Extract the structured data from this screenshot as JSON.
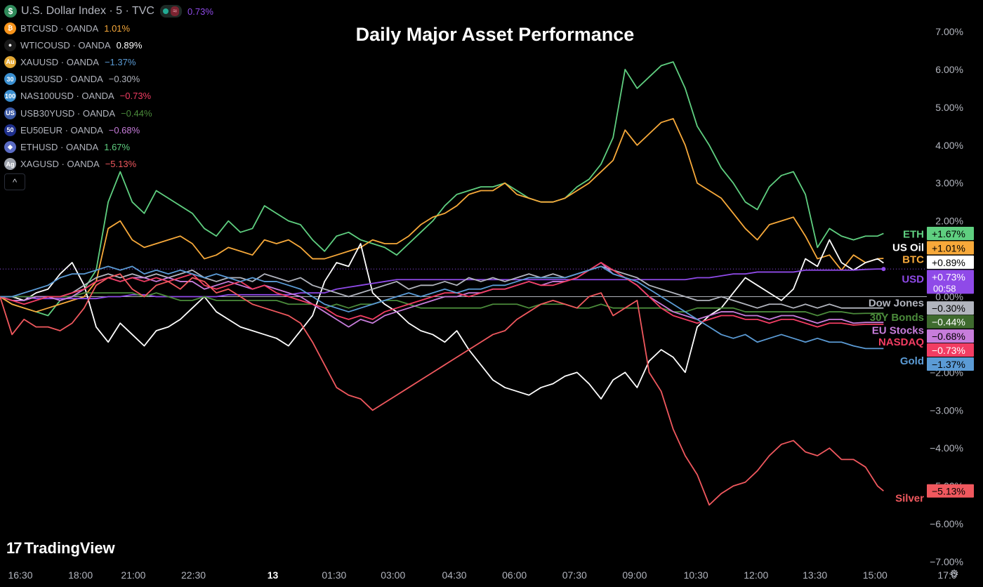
{
  "header": {
    "main_symbol": "U.S. Dollar Index · 5 · TVC",
    "main_value": "0.73%",
    "status_wave": "≈",
    "collapse_glyph": "^"
  },
  "chart_title": "Daily Major Asset Performance",
  "branding": {
    "logo_mark": "17",
    "logo_text": "TradingView",
    "settings_glyph": "⚙"
  },
  "legend_entries": [
    {
      "symbol": "BTCUSD · OANDA",
      "value": "1.01%",
      "color": "#f7a93a",
      "icon_color": "#f7931a",
      "icon_text": "₿"
    },
    {
      "symbol": "WTICOUSD · OANDA",
      "value": "0.89%",
      "color": "#ffffff",
      "icon_color": "#1a1a1a",
      "icon_text": "●"
    },
    {
      "symbol": "XAUUSD · OANDA",
      "value": "−1.37%",
      "color": "#5b9bd5",
      "icon_color": "#e3a835",
      "icon_text": "Au"
    },
    {
      "symbol": "US30USD · OANDA",
      "value": "−0.30%",
      "color": "#b2b5be",
      "icon_color": "#3a8fd0",
      "icon_text": "30"
    },
    {
      "symbol": "NAS100USD · OANDA",
      "value": "−0.73%",
      "color": "#f23d63",
      "icon_color": "#3a8fd0",
      "icon_text": "100"
    },
    {
      "symbol": "USB30YUSD · OANDA",
      "value": "−0.44%",
      "color": "#4b8b3b",
      "icon_color": "#3c5aa6",
      "icon_text": "US"
    },
    {
      "symbol": "EU50EUR · OANDA",
      "value": "−0.68%",
      "color": "#c77ddb",
      "icon_color": "#1e2f8c",
      "icon_text": "50"
    },
    {
      "symbol": "ETHUSD · OANDA",
      "value": "1.67%",
      "color": "#5fcf80",
      "icon_color": "#5a6bc4",
      "icon_text": "◆"
    },
    {
      "symbol": "XAGUSD · OANDA",
      "value": "−5.13%",
      "color": "#f0585e",
      "icon_color": "#9ea3ad",
      "icon_text": "Ag"
    }
  ],
  "chart_data": {
    "type": "line",
    "title": "Daily Major Asset Performance",
    "xlabel": "",
    "ylabel": "",
    "ylim": [
      -7.0,
      7.0
    ],
    "y_ticks": [
      7,
      6,
      5,
      4,
      3,
      2,
      1,
      0,
      -1,
      -2,
      -3,
      -4,
      -5,
      -6,
      -7
    ],
    "y_tick_labels": [
      "7.00%",
      "6.00%",
      "5.00%",
      "4.00%",
      "3.00%",
      "2.00%",
      "1.00%",
      "0.00%",
      "−1.00%",
      "−2.00%",
      "−3.00%",
      "−4.00%",
      "−5.00%",
      "−6.00%",
      "−7.00%"
    ],
    "x_tick_labels": [
      "16:30",
      "18:00",
      "21:00",
      "22:30",
      "13",
      "01:30",
      "03:00",
      "04:30",
      "06:00",
      "07:30",
      "09:00",
      "10:30",
      "12:00",
      "13:30",
      "15:00",
      "17:0"
    ],
    "x_tick_bold": [
      false,
      false,
      false,
      false,
      true,
      false,
      false,
      false,
      false,
      false,
      false,
      false,
      false,
      false,
      false,
      false
    ],
    "x_ticks": [
      0,
      5.0,
      9.4,
      14.4,
      21.0,
      26.1,
      31.0,
      36.1,
      41.1,
      46.1,
      51.1,
      56.2,
      61.2,
      66.1,
      71.1,
      77.1
    ],
    "xlim": [
      0,
      77.1
    ],
    "x_last": 73.5,
    "x": [
      0,
      1,
      2,
      3,
      4,
      5,
      6,
      7,
      8,
      9,
      10,
      11,
      12,
      13,
      14,
      15,
      16,
      17,
      18,
      19,
      20,
      21,
      22,
      23,
      24,
      25,
      26,
      27,
      28,
      29,
      30,
      31,
      32,
      33,
      34,
      35,
      36,
      37,
      38,
      39,
      40,
      41,
      42,
      43,
      44,
      45,
      46,
      47,
      48,
      49,
      50,
      51,
      52,
      53,
      54,
      55,
      56,
      57,
      58,
      59,
      60,
      61,
      62,
      63,
      64,
      65,
      66,
      67,
      68,
      69,
      70,
      71,
      72,
      73,
      73.5
    ],
    "series": [
      {
        "name": "ETHUSD",
        "label": "ETH",
        "color": "#5fcf80",
        "last_label": "+1.67%",
        "values": [
          0.0,
          -0.2,
          -0.3,
          -0.4,
          -0.5,
          -0.1,
          0.0,
          0.2,
          0.7,
          2.5,
          3.3,
          2.5,
          2.2,
          2.8,
          2.6,
          2.4,
          2.2,
          1.8,
          1.6,
          2.0,
          1.7,
          1.8,
          2.4,
          2.2,
          2.0,
          1.9,
          1.5,
          1.2,
          1.6,
          1.7,
          1.5,
          1.4,
          1.3,
          1.1,
          1.4,
          1.7,
          2.0,
          2.4,
          2.7,
          2.8,
          2.9,
          2.9,
          3.0,
          2.8,
          2.6,
          2.5,
          2.5,
          2.6,
          2.9,
          3.1,
          3.5,
          4.2,
          6.0,
          5.5,
          5.8,
          6.1,
          6.2,
          5.5,
          4.5,
          4.0,
          3.4,
          3.0,
          2.5,
          2.3,
          2.9,
          3.2,
          3.3,
          2.7,
          1.3,
          1.8,
          1.6,
          1.5,
          1.6,
          1.6,
          1.67
        ]
      },
      {
        "name": "BTCUSD",
        "label": "BTC",
        "color": "#f7a93a",
        "last_label": "+1.01%",
        "values": [
          0.0,
          -0.2,
          -0.3,
          -0.4,
          -0.3,
          -0.2,
          -0.1,
          0.0,
          0.4,
          1.8,
          2.0,
          1.5,
          1.3,
          1.4,
          1.5,
          1.6,
          1.4,
          1.0,
          1.1,
          1.3,
          1.2,
          1.1,
          1.5,
          1.4,
          1.5,
          1.3,
          1.0,
          1.0,
          1.1,
          1.2,
          1.3,
          1.5,
          1.4,
          1.4,
          1.6,
          1.9,
          2.1,
          2.2,
          2.4,
          2.7,
          2.8,
          2.8,
          3.0,
          2.7,
          2.6,
          2.5,
          2.5,
          2.6,
          2.8,
          3.0,
          3.3,
          3.6,
          4.4,
          4.0,
          4.3,
          4.6,
          4.7,
          4.0,
          3.0,
          2.8,
          2.6,
          2.2,
          1.8,
          1.5,
          1.9,
          2.0,
          2.1,
          1.6,
          1.0,
          1.1,
          0.7,
          1.1,
          0.9,
          1.0,
          1.01
        ]
      },
      {
        "name": "WTICOUSD",
        "label": "US Oil",
        "color": "#ffffff",
        "last_label": "+0.89%",
        "values": [
          0.0,
          0.0,
          -0.1,
          0.1,
          0.2,
          0.6,
          0.9,
          0.3,
          -0.8,
          -1.2,
          -0.7,
          -1.0,
          -1.3,
          -0.9,
          -0.8,
          -0.6,
          -0.3,
          0.0,
          -0.4,
          -0.6,
          -0.8,
          -0.9,
          -1.0,
          -1.1,
          -1.3,
          -0.9,
          -0.5,
          0.4,
          0.9,
          0.8,
          1.4,
          0.1,
          -0.2,
          -0.4,
          -0.7,
          -0.9,
          -1.0,
          -1.2,
          -0.9,
          -1.4,
          -1.8,
          -2.2,
          -2.4,
          -2.5,
          -2.6,
          -2.4,
          -2.3,
          -2.1,
          -2.0,
          -2.3,
          -2.7,
          -2.2,
          -2.0,
          -2.4,
          -1.7,
          -1.4,
          -1.6,
          -2.0,
          -0.8,
          -0.5,
          -0.3,
          0.1,
          0.5,
          0.3,
          0.1,
          -0.1,
          0.2,
          1.0,
          0.8,
          1.5,
          0.9,
          0.7,
          0.9,
          1.0,
          0.89
        ]
      },
      {
        "name": "DXY",
        "label": "USD",
        "color": "#8f4ae8",
        "last_label": "+0.73%",
        "values": [
          0.0,
          0.0,
          0.0,
          -0.05,
          -0.05,
          -0.05,
          -0.05,
          -0.05,
          -0.05,
          0.0,
          0.0,
          0.05,
          0.05,
          0.0,
          0.0,
          0.0,
          0.0,
          0.0,
          0.0,
          0.05,
          0.05,
          0.05,
          0.05,
          0.05,
          0.05,
          0.1,
          0.1,
          0.1,
          0.2,
          0.25,
          0.3,
          0.35,
          0.4,
          0.45,
          0.45,
          0.45,
          0.45,
          0.45,
          0.45,
          0.45,
          0.45,
          0.45,
          0.45,
          0.45,
          0.45,
          0.45,
          0.45,
          0.45,
          0.45,
          0.45,
          0.45,
          0.45,
          0.45,
          0.45,
          0.45,
          0.45,
          0.45,
          0.45,
          0.5,
          0.5,
          0.55,
          0.6,
          0.6,
          0.65,
          0.65,
          0.65,
          0.65,
          0.7,
          0.7,
          0.7,
          0.7,
          0.7,
          0.72,
          0.73,
          0.73
        ]
      },
      {
        "name": "US30USD",
        "label": "Dow Jones",
        "color": "#b2b5be",
        "last_label": "−0.30%",
        "values": [
          0.0,
          -0.1,
          -0.1,
          0.0,
          0.0,
          0.0,
          0.1,
          0.3,
          0.5,
          0.6,
          0.5,
          0.6,
          0.5,
          0.6,
          0.5,
          0.6,
          0.7,
          0.5,
          0.4,
          0.5,
          0.5,
          0.4,
          0.6,
          0.5,
          0.4,
          0.5,
          0.3,
          0.2,
          0.1,
          0.0,
          0.1,
          0.2,
          0.3,
          0.4,
          0.2,
          0.3,
          0.3,
          0.4,
          0.3,
          0.5,
          0.4,
          0.5,
          0.4,
          0.5,
          0.6,
          0.5,
          0.6,
          0.5,
          0.6,
          0.7,
          0.8,
          0.7,
          0.6,
          0.5,
          0.3,
          0.2,
          0.1,
          0.0,
          -0.1,
          -0.1,
          0.0,
          -0.1,
          -0.2,
          -0.3,
          -0.2,
          -0.2,
          -0.3,
          -0.2,
          -0.3,
          -0.2,
          -0.3,
          -0.3,
          -0.3,
          -0.3,
          -0.3
        ]
      },
      {
        "name": "USB30YUSD",
        "label": "30Y Bonds",
        "color": "#4b8b3b",
        "last_label": "−0.44%",
        "values": [
          0.0,
          0.0,
          0.0,
          0.0,
          0.0,
          0.0,
          0.0,
          0.1,
          0.1,
          0.1,
          0.1,
          0.1,
          0.0,
          0.1,
          0.0,
          -0.1,
          -0.1,
          0.0,
          -0.1,
          -0.1,
          -0.1,
          -0.1,
          -0.1,
          -0.1,
          -0.2,
          -0.2,
          -0.2,
          -0.3,
          -0.2,
          -0.3,
          -0.2,
          -0.2,
          -0.1,
          -0.1,
          -0.2,
          -0.3,
          -0.3,
          -0.3,
          -0.3,
          -0.3,
          -0.3,
          -0.2,
          -0.2,
          -0.2,
          -0.3,
          -0.2,
          -0.2,
          -0.2,
          -0.3,
          -0.3,
          -0.2,
          -0.3,
          -0.3,
          -0.3,
          -0.3,
          -0.3,
          -0.4,
          -0.4,
          -0.3,
          -0.3,
          -0.3,
          -0.3,
          -0.4,
          -0.4,
          -0.4,
          -0.4,
          -0.4,
          -0.4,
          -0.5,
          -0.4,
          -0.4,
          -0.45,
          -0.44,
          -0.44,
          -0.44
        ]
      },
      {
        "name": "EU50EUR",
        "label": "EU Stocks",
        "color": "#c77ddb",
        "last_label": "−0.68%",
        "values": [
          0.0,
          -0.1,
          -0.1,
          0.0,
          0.0,
          -0.1,
          0.0,
          0.2,
          0.4,
          0.5,
          0.4,
          0.5,
          0.5,
          0.4,
          0.5,
          0.4,
          0.4,
          0.2,
          0.3,
          0.4,
          0.3,
          0.2,
          0.3,
          0.2,
          0.1,
          0.0,
          -0.2,
          -0.4,
          -0.6,
          -0.8,
          -0.6,
          -0.7,
          -0.5,
          -0.4,
          -0.3,
          -0.2,
          -0.1,
          0.0,
          0.0,
          0.1,
          0.1,
          0.2,
          0.2,
          0.3,
          0.4,
          0.3,
          0.4,
          0.4,
          0.5,
          0.7,
          0.9,
          0.6,
          0.5,
          0.3,
          0.0,
          -0.2,
          -0.4,
          -0.5,
          -0.6,
          -0.5,
          -0.4,
          -0.4,
          -0.5,
          -0.5,
          -0.6,
          -0.5,
          -0.5,
          -0.6,
          -0.7,
          -0.6,
          -0.6,
          -0.7,
          -0.68,
          -0.68,
          -0.68
        ]
      },
      {
        "name": "NAS100USD",
        "label": "NASDAQ",
        "color": "#f23d63",
        "last_label": "−0.73%",
        "values": [
          0.0,
          -0.1,
          -0.2,
          -0.1,
          0.0,
          0.0,
          0.1,
          0.2,
          0.4,
          0.5,
          0.4,
          0.5,
          0.4,
          0.5,
          0.4,
          0.5,
          0.6,
          0.3,
          0.2,
          0.3,
          0.4,
          0.2,
          0.3,
          0.1,
          0.0,
          -0.1,
          -0.2,
          -0.3,
          -0.5,
          -0.6,
          -0.5,
          -0.6,
          -0.4,
          -0.3,
          -0.2,
          -0.1,
          0.0,
          0.1,
          0.1,
          0.0,
          0.1,
          0.2,
          0.2,
          0.3,
          0.4,
          0.3,
          0.3,
          0.4,
          0.5,
          0.7,
          0.9,
          0.7,
          0.5,
          0.3,
          0.0,
          -0.3,
          -0.5,
          -0.6,
          -0.7,
          -0.6,
          -0.5,
          -0.5,
          -0.6,
          -0.6,
          -0.7,
          -0.6,
          -0.6,
          -0.7,
          -0.8,
          -0.7,
          -0.7,
          -0.75,
          -0.73,
          -0.73,
          -0.73
        ]
      },
      {
        "name": "XAUUSD",
        "label": "Gold",
        "color": "#5b9bd5",
        "last_label": "−1.37%",
        "values": [
          0.0,
          0.0,
          0.1,
          0.2,
          0.3,
          0.5,
          0.6,
          0.6,
          0.7,
          0.8,
          0.7,
          0.8,
          0.6,
          0.7,
          0.6,
          0.7,
          0.6,
          0.5,
          0.6,
          0.5,
          0.4,
          0.5,
          0.4,
          0.4,
          0.3,
          0.2,
          0.0,
          -0.2,
          -0.3,
          -0.4,
          -0.3,
          -0.2,
          -0.1,
          0.0,
          0.1,
          0.0,
          0.1,
          0.2,
          0.1,
          0.2,
          0.2,
          0.3,
          0.3,
          0.4,
          0.5,
          0.5,
          0.5,
          0.5,
          0.6,
          0.7,
          0.8,
          0.6,
          0.5,
          0.4,
          0.2,
          0.0,
          -0.2,
          -0.4,
          -0.6,
          -0.8,
          -1.0,
          -1.1,
          -1.0,
          -1.2,
          -1.1,
          -1.0,
          -1.1,
          -1.2,
          -1.1,
          -1.2,
          -1.2,
          -1.3,
          -1.37,
          -1.37,
          -1.37
        ]
      },
      {
        "name": "XAGUSD",
        "label": "Silver",
        "color": "#f0585e",
        "last_label": "−5.13%",
        "values": [
          0.0,
          -1.0,
          -0.6,
          -0.8,
          -0.8,
          -0.9,
          -0.7,
          -0.3,
          0.3,
          0.5,
          0.6,
          0.2,
          0.0,
          0.3,
          0.4,
          0.2,
          0.5,
          0.4,
          0.1,
          0.2,
          0.0,
          -0.2,
          -0.3,
          -0.4,
          -0.5,
          -0.7,
          -1.2,
          -1.8,
          -2.4,
          -2.6,
          -2.7,
          -3.0,
          -2.8,
          -2.6,
          -2.4,
          -2.2,
          -2.0,
          -1.8,
          -1.6,
          -1.4,
          -1.2,
          -1.0,
          -0.9,
          -0.6,
          -0.4,
          -0.2,
          -0.1,
          -0.2,
          -0.3,
          0.0,
          0.1,
          -0.5,
          -0.3,
          -0.1,
          -2.0,
          -2.5,
          -3.5,
          -4.2,
          -4.7,
          -5.5,
          -5.2,
          -5.0,
          -4.9,
          -4.6,
          -4.2,
          -3.9,
          -3.8,
          -4.1,
          -4.2,
          -4.0,
          -4.3,
          -4.3,
          -4.5,
          -5.0,
          -5.13
        ]
      }
    ],
    "right_labels": [
      {
        "text": "ETH",
        "color": "#5fcf80",
        "y": 1.67
      },
      {
        "text": "US Oil",
        "color": "#ffffff",
        "y": 1.32
      },
      {
        "text": "BTC",
        "color": "#f7a93a",
        "y": 1.0
      },
      {
        "text": "USD",
        "color": "#8f4ae8",
        "y": 0.48
      },
      {
        "text": "Dow Jones",
        "color": "#b2b5be",
        "y": -0.15
      },
      {
        "text": "30Y Bonds",
        "color": "#4b8b3b",
        "y": -0.53
      },
      {
        "text": "EU Stocks",
        "color": "#c77ddb",
        "y": -0.87
      },
      {
        "text": "NASDAQ",
        "color": "#f23d63",
        "y": -1.18
      },
      {
        "text": "Gold",
        "color": "#5b9bd5",
        "y": -1.68
      },
      {
        "text": "Silver",
        "color": "#f0585e",
        "y": -5.3
      }
    ],
    "value_badges": [
      {
        "text": "+1.67%",
        "bg": "#5fcf80",
        "fg": "#000000",
        "y": 1.67
      },
      {
        "text": "+1.01%",
        "bg": "#f7a93a",
        "fg": "#000000",
        "y": 1.29
      },
      {
        "text": "+0.89%",
        "bg": "#ffffff",
        "fg": "#000000",
        "y": 0.91
      },
      {
        "text": "+0.73%",
        "bg": "#8f4ae8",
        "fg": "#ffffff",
        "y": 0.53,
        "sub": "00:58"
      },
      {
        "text": "−0.30%",
        "bg": "#b2b5be",
        "fg": "#000000",
        "y": -0.3
      },
      {
        "text": "−0.44%",
        "bg": "#3f6b2f",
        "fg": "#ffffff",
        "y": -0.66
      },
      {
        "text": "−0.68%",
        "bg": "#c77ddb",
        "fg": "#000000",
        "y": -1.04
      },
      {
        "text": "−0.73%",
        "bg": "#f23d63",
        "fg": "#ffffff",
        "y": -1.41
      },
      {
        "text": "−1.37%",
        "bg": "#5b9bd5",
        "fg": "#000000",
        "y": -1.78
      },
      {
        "text": "−5.13%",
        "bg": "#f0585e",
        "fg": "#000000",
        "y": -5.13
      }
    ],
    "zero_line": 0.0,
    "reference_line": 0.73
  }
}
